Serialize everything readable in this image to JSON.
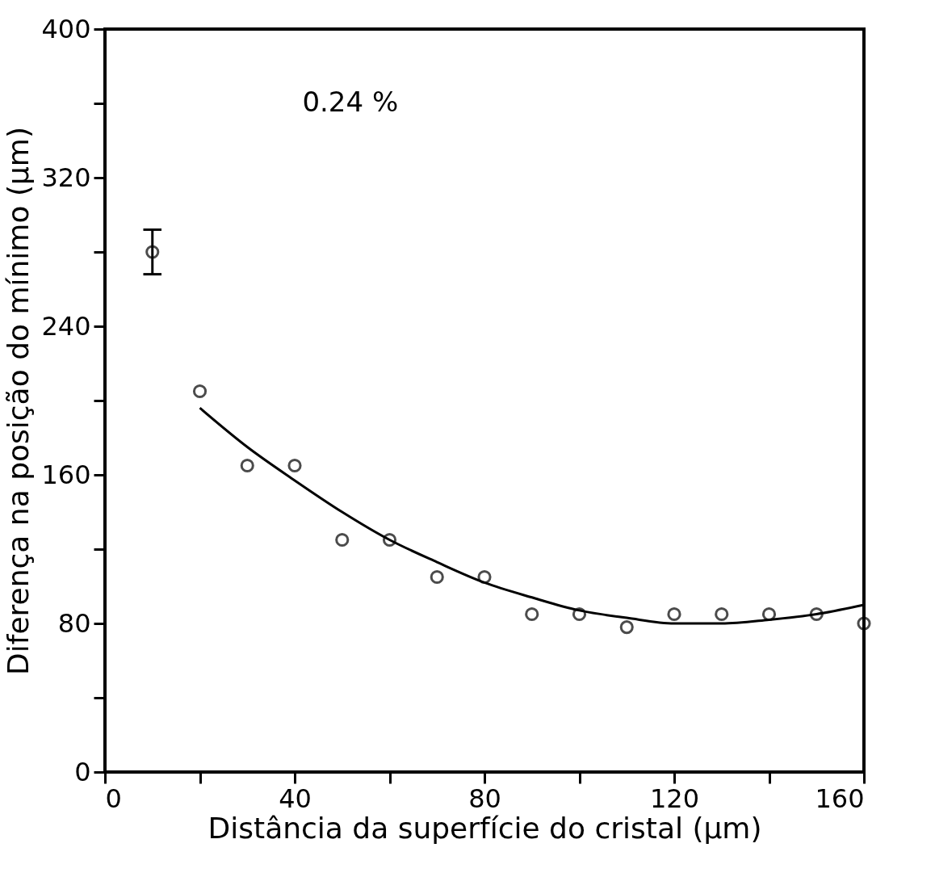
{
  "chart_data": {
    "type": "scatter",
    "xlabel": "Distância da superfície do cristal (µm)",
    "ylabel": "Diferença na posição do mínimo (µm)",
    "xlim": [
      0,
      160
    ],
    "xticks": [
      0,
      {
        "value": 20,
        "label": null
      },
      40,
      {
        "value": 60,
        "label": null
      },
      80,
      {
        "value": 100,
        "label": null
      },
      120,
      {
        "value": 140,
        "label": null
      },
      160
    ],
    "ylim": [
      0,
      400
    ],
    "yticks": [
      0,
      {
        "value": 40,
        "label": null
      },
      80,
      {
        "value": 120,
        "label": null
      },
      160,
      {
        "value": 200,
        "label": null
      },
      240,
      {
        "value": 280,
        "label": null
      },
      320,
      {
        "value": 360,
        "label": null
      },
      400
    ],
    "grid": false,
    "marker": "circle",
    "annotations": [
      "0.24 %"
    ],
    "series": [
      {
        "type": "scatter",
        "color": "#000000",
        "x": [
          10,
          20,
          30,
          40,
          50,
          60,
          70,
          80,
          90,
          100,
          110,
          120,
          130,
          140,
          150,
          160
        ],
        "values": [
          280,
          205,
          165,
          165,
          125,
          125,
          105,
          105,
          85,
          85,
          78,
          85,
          85,
          85,
          85,
          80
        ],
        "errors": [
          [
            268,
            292
          ],
          null,
          null,
          null,
          null,
          null,
          null,
          null,
          null,
          null,
          null,
          null,
          null,
          null,
          null,
          null
        ]
      },
      {
        "type": "line",
        "color": "#000000",
        "marker": "none",
        "x": [
          20,
          30,
          40,
          50,
          60,
          70,
          80,
          90,
          100,
          110,
          120,
          130,
          140,
          150,
          160
        ],
        "values": [
          196,
          175,
          157,
          140,
          125,
          113,
          102,
          94,
          87,
          83,
          80,
          80,
          82,
          85,
          90
        ]
      }
    ]
  }
}
